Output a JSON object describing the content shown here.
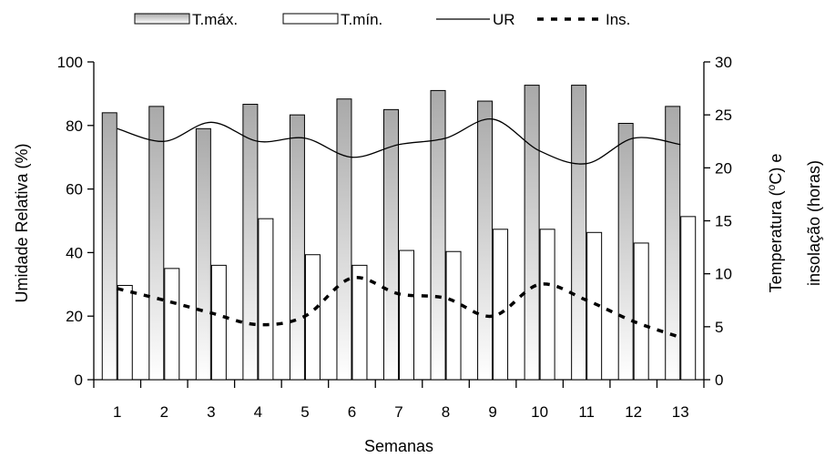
{
  "chart_data": {
    "type": "bar",
    "xlabel": "Semanas",
    "ylabel_left": "Umidade Relativa (%)",
    "ylabel_right_line1": "Temperatura (",
    "ylabel_right_sup": "o",
    "ylabel_right_line1_end": "C) e",
    "ylabel_right_line2": "insolação (horas)",
    "categories": [
      "1",
      "2",
      "3",
      "4",
      "5",
      "6",
      "7",
      "8",
      "9",
      "10",
      "11",
      "12",
      "13"
    ],
    "ylim_left": [
      0,
      100
    ],
    "ylim_right": [
      0,
      30
    ],
    "yticks_left": [
      "0",
      "20",
      "40",
      "60",
      "80",
      "100"
    ],
    "yticks_right": [
      "0",
      "5",
      "10",
      "15",
      "20",
      "25",
      "30"
    ],
    "legend_position": "top",
    "series": [
      {
        "name": "T.máx.",
        "kind": "bar",
        "axis": "right",
        "values": [
          25.2,
          25.8,
          23.7,
          26.0,
          25.0,
          26.5,
          25.5,
          27.3,
          26.3,
          27.8,
          27.8,
          24.2,
          25.8
        ]
      },
      {
        "name": "T.mín.",
        "kind": "bar",
        "axis": "right",
        "values": [
          8.9,
          10.5,
          10.8,
          15.2,
          11.8,
          10.8,
          12.2,
          12.1,
          14.2,
          14.2,
          13.9,
          12.9,
          15.4
        ]
      },
      {
        "name": "UR",
        "kind": "line",
        "axis": "left",
        "values": [
          79,
          75,
          81,
          75,
          76,
          70,
          74,
          76,
          82,
          72,
          68,
          76,
          74
        ]
      },
      {
        "name": "Ins.",
        "kind": "dashed-line",
        "axis": "right",
        "values": [
          8.6,
          7.5,
          6.3,
          5.2,
          6.0,
          9.6,
          8.1,
          7.7,
          6.0,
          9.0,
          7.5,
          5.5,
          4.0
        ]
      }
    ]
  }
}
